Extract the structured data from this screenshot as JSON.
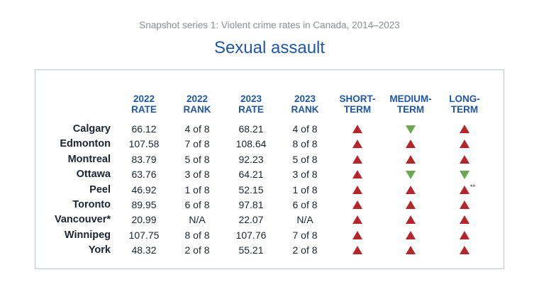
{
  "supertitle": "Snapshot series 1:  Violent crime rates in Canada, 2014–2023",
  "title": "Sexual assault",
  "headers": [
    {
      "l1": "2022",
      "l2": "RATE"
    },
    {
      "l1": "2022",
      "l2": "RANK"
    },
    {
      "l1": "2023",
      "l2": "RATE"
    },
    {
      "l1": "2023",
      "l2": "RANK"
    },
    {
      "l1": "SHORT-",
      "l2": "TERM"
    },
    {
      "l1": "MEDIUM-",
      "l2": "TERM"
    },
    {
      "l1": "LONG-",
      "l2": "TERM"
    }
  ],
  "rows": [
    {
      "city": "Calgary",
      "rate_2022": "66.12",
      "rank_2022": "4 of 8",
      "rate_2023": "68.21",
      "rank_2023": "4 of 8",
      "short": "up",
      "medium": "down",
      "long": "up",
      "long_note": ""
    },
    {
      "city": "Edmonton",
      "rate_2022": "107.58",
      "rank_2022": "7 of 8",
      "rate_2023": "108.64",
      "rank_2023": "8 of 8",
      "short": "up",
      "medium": "up",
      "long": "up",
      "long_note": ""
    },
    {
      "city": "Montreal",
      "rate_2022": "83.79",
      "rank_2022": "5 of 8",
      "rate_2023": "92.23",
      "rank_2023": "5 of 8",
      "short": "up",
      "medium": "up",
      "long": "up",
      "long_note": ""
    },
    {
      "city": "Ottawa",
      "rate_2022": "63.76",
      "rank_2022": "3 of 8",
      "rate_2023": "64.21",
      "rank_2023": "3 of 8",
      "short": "up",
      "medium": "down",
      "long": "down",
      "long_note": ""
    },
    {
      "city": "Peel",
      "rate_2022": "46.92",
      "rank_2022": "1 of 8",
      "rate_2023": "52.15",
      "rank_2023": "1 of 8",
      "short": "up",
      "medium": "up",
      "long": "up",
      "long_note": "**"
    },
    {
      "city": "Toronto",
      "rate_2022": "89.95",
      "rank_2022": "6 of 8",
      "rate_2023": "97.81",
      "rank_2023": "6 of 8",
      "short": "up",
      "medium": "up",
      "long": "up",
      "long_note": ""
    },
    {
      "city": "Vancouver*",
      "rate_2022": "20.99",
      "rank_2022": "N/A",
      "rate_2023": "22.07",
      "rank_2023": "N/A",
      "short": "up",
      "medium": "up",
      "long": "up",
      "long_note": ""
    },
    {
      "city": "Winnipeg",
      "rate_2022": "107.75",
      "rank_2022": "8 of 8",
      "rate_2023": "107.76",
      "rank_2023": "7 of 8",
      "short": "up",
      "medium": "up",
      "long": "up",
      "long_note": ""
    },
    {
      "city": "York",
      "rate_2022": "48.32",
      "rank_2022": "2 of 8",
      "rate_2023": "55.21",
      "rank_2023": "2 of 8",
      "short": "up",
      "medium": "up",
      "long": "up",
      "long_note": ""
    }
  ],
  "colors": {
    "up": "#b5262b",
    "down": "#6aa84f",
    "header": "#1f57a6"
  }
}
